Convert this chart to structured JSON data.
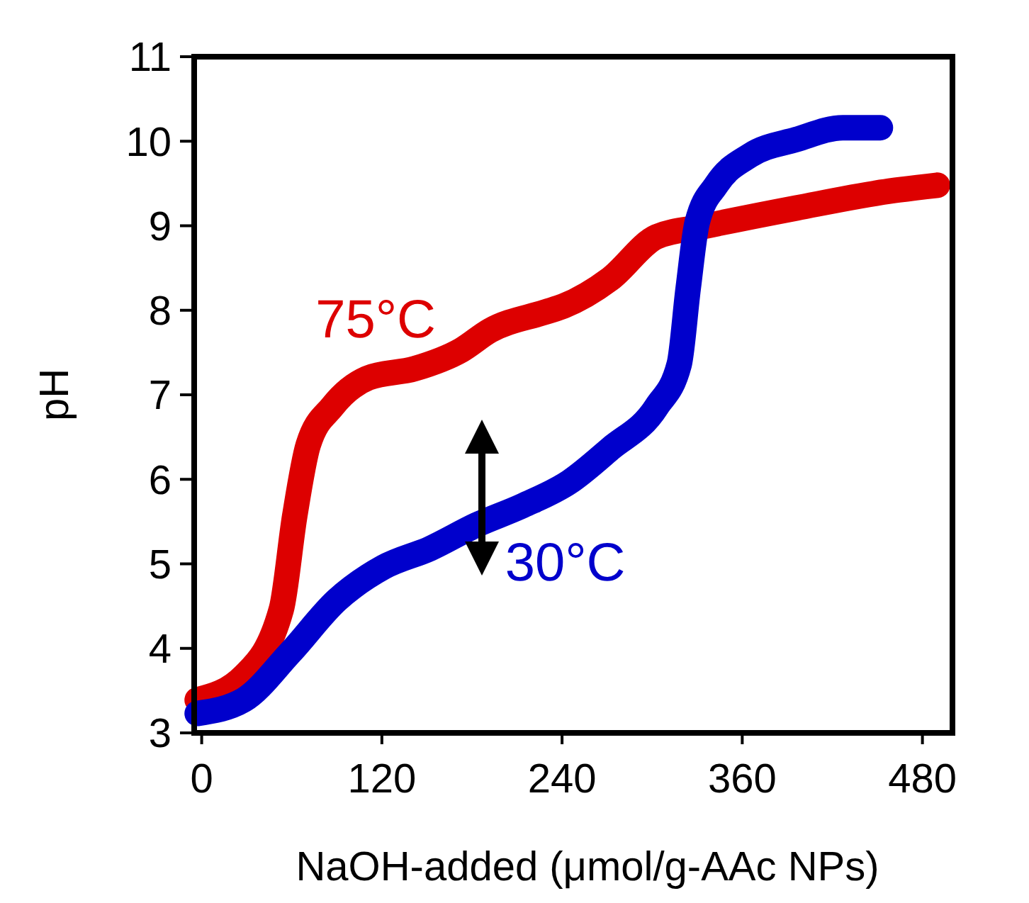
{
  "chart_data": {
    "type": "line",
    "xlabel": "NaOH-added (μmol/g-AAc NPs)",
    "ylabel": "pH",
    "xlim": [
      -5,
      500
    ],
    "xticks": [
      0,
      120,
      240,
      360,
      480
    ],
    "ylim": [
      3,
      11
    ],
    "yticks": [
      3,
      4,
      5,
      6,
      7,
      8,
      9,
      10,
      11
    ],
    "grid": false,
    "series": [
      {
        "name": "75°C",
        "color": "#dd0000",
        "x": [
          -3,
          28,
          53,
          62,
          71,
          87,
          111,
          142,
          173,
          192,
          229,
          241,
          272,
          303,
          334,
          396,
          458,
          490
        ],
        "values": [
          3.39,
          3.67,
          4.46,
          5.57,
          6.41,
          6.86,
          7.2,
          7.31,
          7.53,
          7.76,
          7.98,
          8.05,
          8.37,
          8.87,
          8.99,
          9.21,
          9.41,
          9.48
        ]
      },
      {
        "name": "30°C",
        "color": "#0000cc",
        "x": [
          -3,
          28,
          59,
          90,
          121,
          152,
          183,
          214,
          245,
          272,
          303,
          318,
          324,
          330,
          343,
          365,
          396,
          427,
          452
        ],
        "values": [
          3.23,
          3.39,
          3.95,
          4.57,
          4.96,
          5.18,
          5.46,
          5.69,
          5.97,
          6.36,
          6.86,
          7.36,
          8.26,
          9.04,
          9.49,
          9.83,
          10.02,
          10.16,
          10.16
        ]
      }
    ]
  }
}
